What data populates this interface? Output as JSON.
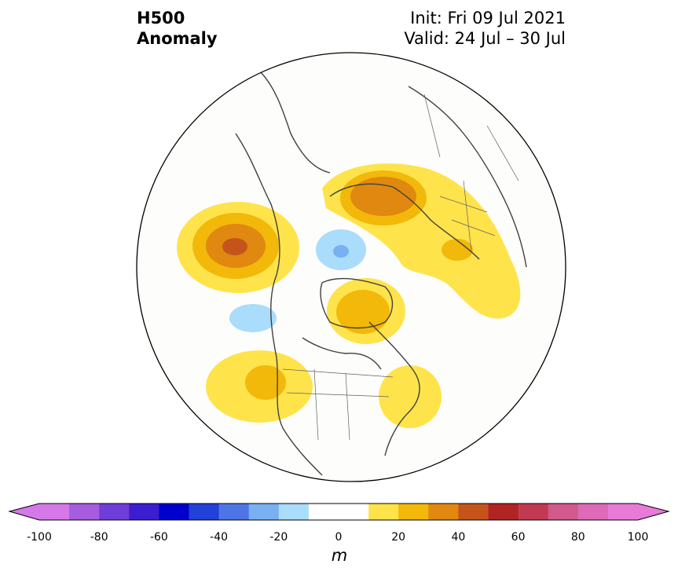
{
  "title": {
    "line1": "H500",
    "line2": "Anomaly"
  },
  "info": {
    "init": "Init: Fri 09 Jul 2021",
    "valid": "Valid: 24 Jul – 30 Jul"
  },
  "colorbar": {
    "unit": "m",
    "tick_labels": [
      "-100",
      "-80",
      "-60",
      "-40",
      "-20",
      "0",
      "20",
      "40",
      "60",
      "80",
      "100"
    ],
    "levels": [
      -100,
      -90,
      -80,
      -70,
      -60,
      -50,
      -40,
      -30,
      -20,
      -10,
      10,
      20,
      30,
      40,
      50,
      60,
      70,
      80,
      90,
      100
    ],
    "colors": [
      "#d679e8",
      "#a75ce0",
      "#6f3ed9",
      "#3a1ecf",
      "#0000cc",
      "#2340d8",
      "#4e75e6",
      "#78b0f2",
      "#aadcfc",
      "#ffffff",
      "#ffe34b",
      "#f2b80a",
      "#e08810",
      "#c4541c",
      "#b02424",
      "#c23a52",
      "#d05a8c",
      "#dd6bb8",
      "#e87ad8"
    ],
    "under_color": "#d679e8",
    "over_color": "#e87ad8"
  },
  "map": {
    "projection": "north-polar-stereographic",
    "anomaly_centers": [
      {
        "region": "NE Pacific / Gulf of Alaska",
        "sign": "positive",
        "peak_m": 45
      },
      {
        "region": "Scandinavia / Barents Sea",
        "sign": "positive",
        "peak_m": 35
      },
      {
        "region": "Central Arctic Ocean",
        "sign": "negative",
        "peak_m": -25
      },
      {
        "region": "North Pacific west of Canada",
        "sign": "negative",
        "peak_m": -15
      },
      {
        "region": "Hudson Bay / Baffin",
        "sign": "positive",
        "peak_m": 25
      },
      {
        "region": "Western United States",
        "sign": "positive",
        "peak_m": 25
      },
      {
        "region": "Northeastern United States",
        "sign": "positive",
        "peak_m": 15
      },
      {
        "region": "Western Russia",
        "sign": "positive",
        "peak_m": 15
      }
    ]
  }
}
